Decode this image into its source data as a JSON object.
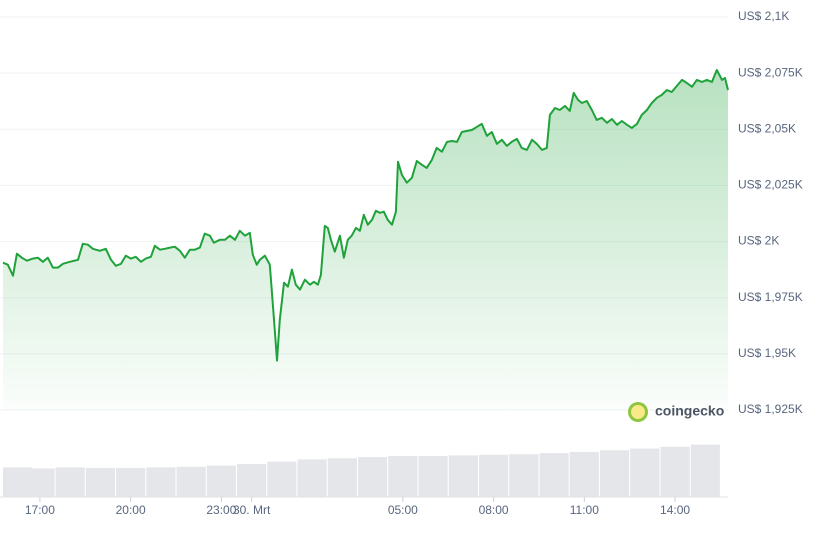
{
  "chart_data": {
    "type": "area",
    "color": "#1fa23a",
    "watermark": "coingecko",
    "x": [
      15.78,
      15.94,
      16.11,
      16.24,
      16.4,
      16.57,
      16.77,
      16.93,
      17.1,
      17.26,
      17.43,
      17.6,
      17.76,
      17.99,
      18.26,
      18.42,
      18.59,
      18.75,
      18.98,
      19.18,
      19.35,
      19.51,
      19.68,
      19.84,
      20.01,
      20.17,
      20.34,
      20.5,
      20.67,
      20.8,
      20.97,
      21.13,
      21.3,
      21.46,
      21.63,
      21.79,
      21.96,
      22.12,
      22.29,
      22.45,
      22.62,
      22.75,
      22.95,
      23.12,
      23.28,
      23.45,
      23.61,
      23.78,
      23.94,
      24.04,
      24.17,
      24.27,
      24.44,
      24.6,
      24.74,
      24.84,
      24.93,
      25.07,
      25.2,
      25.33,
      25.46,
      25.6,
      25.76,
      25.93,
      26.06,
      26.19,
      26.29,
      26.42,
      26.52,
      26.62,
      26.75,
      26.92,
      27.05,
      27.18,
      27.31,
      27.45,
      27.58,
      27.71,
      27.84,
      27.98,
      28.11,
      28.24,
      28.37,
      28.5,
      28.64,
      28.77,
      28.84,
      28.97,
      29.13,
      29.3,
      29.46,
      29.63,
      29.79,
      29.96,
      30.12,
      30.29,
      30.46,
      30.62,
      30.79,
      30.95,
      31.12,
      31.28,
      31.45,
      31.61,
      31.78,
      31.94,
      32.11,
      32.27,
      32.44,
      32.6,
      32.77,
      32.93,
      33.1,
      33.27,
      33.43,
      33.6,
      33.76,
      33.86,
      34.03,
      34.19,
      34.36,
      34.52,
      34.65,
      34.79,
      34.92,
      35.08,
      35.25,
      35.41,
      35.58,
      35.75,
      35.91,
      36.08,
      36.24,
      36.41,
      36.57,
      36.74,
      36.9,
      37.07,
      37.23,
      37.4,
      37.56,
      37.73,
      37.89,
      38.06,
      38.23,
      38.39,
      38.56,
      38.72,
      38.89,
      39.05,
      39.22,
      39.38,
      39.55,
      39.65,
      39.75
    ],
    "values": [
      1990.6,
      1989.7,
      1984.8,
      1994.6,
      1992.8,
      1991.5,
      1992.4,
      1992.8,
      1991.0,
      1992.8,
      1988.4,
      1988.4,
      1990.1,
      1991.0,
      1991.9,
      1999.0,
      1998.6,
      1996.8,
      1995.9,
      1996.8,
      1991.9,
      1989.2,
      1990.1,
      1993.7,
      1992.4,
      1993.2,
      1991.0,
      1992.4,
      1993.2,
      1998.1,
      1996.4,
      1996.8,
      1997.3,
      1997.7,
      1995.9,
      1992.8,
      1996.4,
      1996.4,
      1997.3,
      2003.5,
      2002.6,
      1999.5,
      2000.8,
      2000.8,
      2002.6,
      2000.8,
      2004.8,
      2002.6,
      2003.9,
      1994.1,
      1989.7,
      1991.9,
      1993.7,
      1989.7,
      1965.2,
      1947.0,
      1965.2,
      1981.7,
      1979.9,
      1987.5,
      1980.8,
      1978.6,
      1983.0,
      1980.8,
      1982.1,
      1980.8,
      1985.2,
      2007.0,
      2006.1,
      2000.8,
      1995.5,
      2002.6,
      1992.8,
      2000.8,
      2002.6,
      2006.1,
      2004.8,
      2011.9,
      2007.5,
      2009.7,
      2013.7,
      2012.8,
      2013.3,
      2009.7,
      2007.5,
      2013.3,
      2035.5,
      2029.7,
      2026.2,
      2028.4,
      2035.9,
      2034.2,
      2032.8,
      2036.4,
      2041.7,
      2040.0,
      2044.4,
      2044.8,
      2044.4,
      2048.8,
      2049.3,
      2049.7,
      2051.1,
      2052.4,
      2047.1,
      2048.8,
      2043.5,
      2045.3,
      2042.6,
      2044.4,
      2045.7,
      2041.7,
      2040.8,
      2045.3,
      2043.5,
      2040.8,
      2041.7,
      2056.4,
      2059.5,
      2058.6,
      2060.4,
      2058.2,
      2066.2,
      2063.1,
      2061.7,
      2062.6,
      2058.6,
      2054.2,
      2055.1,
      2052.9,
      2054.6,
      2052.0,
      2053.7,
      2052.0,
      2050.6,
      2052.4,
      2056.4,
      2058.6,
      2061.7,
      2064.0,
      2065.3,
      2067.5,
      2066.6,
      2069.3,
      2072.0,
      2070.6,
      2068.9,
      2072.0,
      2071.1,
      2072.0,
      2071.1,
      2076.4,
      2072.0,
      2072.9,
      2067.5
    ],
    "xlim": [
      15.78,
      39.75
    ],
    "xticks": [
      {
        "value": 17,
        "label": "17:00"
      },
      {
        "value": 20,
        "label": "20:00"
      },
      {
        "value": 23,
        "label": "23:00"
      },
      {
        "value": 24,
        "label": "30. Mrt"
      },
      {
        "value": 29,
        "label": "05:00"
      },
      {
        "value": 32,
        "label": "08:00"
      },
      {
        "value": 35,
        "label": "11:00"
      },
      {
        "value": 38,
        "label": "14:00"
      }
    ],
    "ylim": [
      1925,
      2100
    ],
    "yticks": [
      {
        "value": 1925,
        "label": "US$ 1,925K"
      },
      {
        "value": 1950,
        "label": "US$ 1,95K"
      },
      {
        "value": 1975,
        "label": "US$ 1,975K"
      },
      {
        "value": 2000,
        "label": "US$ 2K"
      },
      {
        "value": 2025,
        "label": "US$ 2,025K"
      },
      {
        "value": 2050,
        "label": "US$ 2,05K"
      },
      {
        "value": 2075,
        "label": "US$ 2,075K"
      },
      {
        "value": 2100,
        "label": "US$ 2,1K"
      }
    ],
    "grid": true,
    "volume": {
      "color": "#e4e6e9",
      "ylim": [
        0,
        100
      ],
      "x": [
        16,
        17,
        18,
        19,
        20,
        21,
        22,
        23,
        24,
        25,
        26,
        27,
        28,
        29,
        30,
        31,
        32,
        33,
        34,
        35,
        36,
        37,
        38,
        39
      ],
      "values": [
        52,
        50,
        52,
        51,
        51,
        52,
        53,
        55,
        58,
        62,
        66,
        68,
        70,
        72,
        72,
        73,
        74,
        75,
        77,
        79,
        82,
        85,
        88,
        92
      ]
    }
  }
}
